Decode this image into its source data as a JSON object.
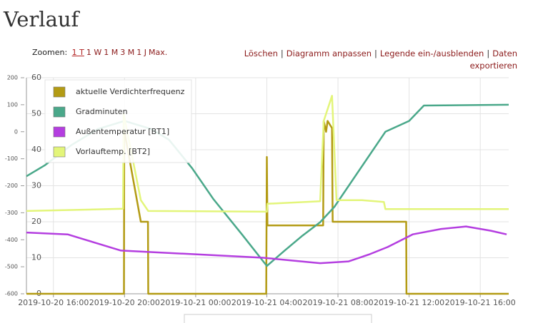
{
  "header": {
    "title": "Verlauf"
  },
  "toolbar": {
    "zoom_label": "Zoomen:",
    "zoom_options": [
      "1 T",
      "1 W",
      "1 M",
      "3 M",
      "1 J",
      "Max."
    ],
    "actions": [
      "Löschen",
      "Diagramm anpassen",
      "Legende ein-/ausblenden",
      "Daten exportieren"
    ]
  },
  "chart_data": {
    "type": "line",
    "xlim": [
      "2019-10-20 14:29",
      "2019-10-21 17:36"
    ],
    "xticks": [
      "2019-10-20 16:00",
      "2019-10-20 20:00",
      "2019-10-21 00:00",
      "2019-10-21 04:00",
      "2019-10-21 08:00",
      "2019-10-21 12:00",
      "2019-10-21 16:00"
    ],
    "ylim": [
      -600,
      200
    ],
    "yticks": [
      -600,
      -500,
      -400,
      -300,
      -200,
      -100,
      0,
      100,
      200
    ],
    "y2lim": [
      0,
      60
    ],
    "y2ticks": [
      0,
      10,
      20,
      30,
      40,
      50,
      60
    ],
    "grid": true,
    "legend": "upper left",
    "series": [
      {
        "name": "aktuelle Verdichterfrequenz",
        "color": "#b39b14",
        "axis": "y2",
        "x": [
          "2019-10-20 14:29",
          "2019-10-20 19:58",
          "2019-10-20 19:59",
          "2019-10-20 20:00",
          "2019-10-20 20:55",
          "2019-10-20 21:19",
          "2019-10-20 21:20",
          "2019-10-21 03:58",
          "2019-10-21 04:00",
          "2019-10-21 04:02",
          "2019-10-21 07:10",
          "2019-10-21 07:12",
          "2019-10-21 07:20",
          "2019-10-21 07:25",
          "2019-10-21 07:40",
          "2019-10-21 07:42",
          "2019-10-21 11:50",
          "2019-10-21 11:51",
          "2019-10-21 17:36"
        ],
        "values": [
          0,
          0,
          45,
          45,
          20,
          20,
          0,
          0,
          38,
          19,
          19,
          48,
          45,
          48,
          46,
          20,
          20,
          0,
          0
        ]
      },
      {
        "name": "Gradminuten",
        "color": "#4aa88a",
        "x": [
          "2019-10-20 14:29",
          "2019-10-20 15:30",
          "2019-10-20 17:00",
          "2019-10-20 18:30",
          "2019-10-20 20:00",
          "2019-10-20 21:30",
          "2019-10-20 22:30",
          "2019-10-20 23:48",
          "2019-10-21 01:00",
          "2019-10-21 02:36",
          "2019-10-21 04:00",
          "2019-10-21 05:00",
          "2019-10-21 06:00",
          "2019-10-21 07:00",
          "2019-10-21 07:48",
          "2019-10-21 10:40",
          "2019-10-21 12:00",
          "2019-10-21 12:50",
          "2019-10-21 17:36"
        ],
        "values": [
          -165,
          -125,
          -50,
          10,
          40,
          10,
          -30,
          -135,
          -250,
          -380,
          -497,
          -440,
          -385,
          -335,
          -278,
          0,
          40,
          97,
          100
        ]
      },
      {
        "name": "Außentemperatur [BT1]",
        "color": "#b43ee0",
        "axis": "y2",
        "x": [
          "2019-10-20 14:29",
          "2019-10-20 16:48",
          "2019-10-20 17:48",
          "2019-10-20 19:48",
          "2019-10-20 23:48",
          "2019-10-21 03:48",
          "2019-10-21 07:00",
          "2019-10-21 08:36",
          "2019-10-21 09:48",
          "2019-10-21 10:48",
          "2019-10-21 12:12",
          "2019-10-21 13:48",
          "2019-10-21 15:12",
          "2019-10-21 16:36",
          "2019-10-21 17:29"
        ],
        "values": [
          17,
          16.5,
          15,
          12,
          11,
          10,
          8.5,
          9,
          11,
          13,
          16.5,
          18,
          18.7,
          17.5,
          16.5
        ]
      },
      {
        "name": "Vorlauftemp. [BT2]",
        "color": "#e3f57a",
        "axis": "y2",
        "x": [
          "2019-10-20 14:29",
          "2019-10-20 19:55",
          "2019-10-20 19:57",
          "2019-10-20 20:55",
          "2019-10-20 21:20",
          "2019-10-21 04:00",
          "2019-10-21 04:02",
          "2019-10-21 07:00",
          "2019-10-21 07:12",
          "2019-10-21 07:40",
          "2019-10-21 07:55",
          "2019-10-21 09:20",
          "2019-10-21 10:35",
          "2019-10-21 10:40",
          "2019-10-21 17:36"
        ],
        "values": [
          23,
          23.6,
          50,
          26,
          23,
          22.8,
          25,
          25.7,
          48,
          55,
          26,
          26,
          25.5,
          23.5,
          23.5
        ]
      }
    ]
  }
}
